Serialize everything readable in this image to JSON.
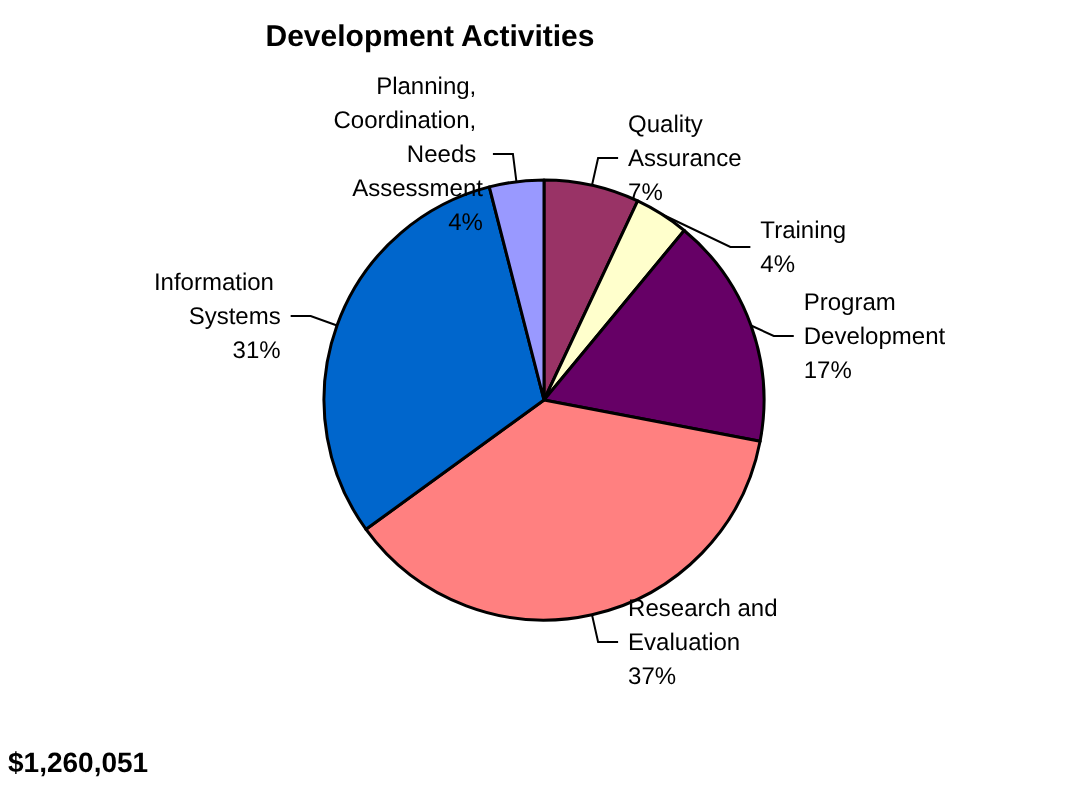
{
  "chart_data": {
    "type": "pie",
    "title": "Development Activities",
    "categories": [
      "Quality Assurance",
      "Training",
      "Program Development",
      "Research and Evaluation",
      "Information Systems",
      "Planning, Coordination, Needs Assessment"
    ],
    "values": [
      7,
      4,
      17,
      37,
      31,
      4
    ],
    "colors": [
      "#993366",
      "#ffffcc",
      "#660066",
      "#ff8080",
      "#0066cc",
      "#9999ff"
    ],
    "value_labels": [
      "7%",
      "4%",
      "17%",
      "37%",
      "31%",
      "4%"
    ],
    "legend": false,
    "annotations": [
      "$1,260,051"
    ]
  }
}
